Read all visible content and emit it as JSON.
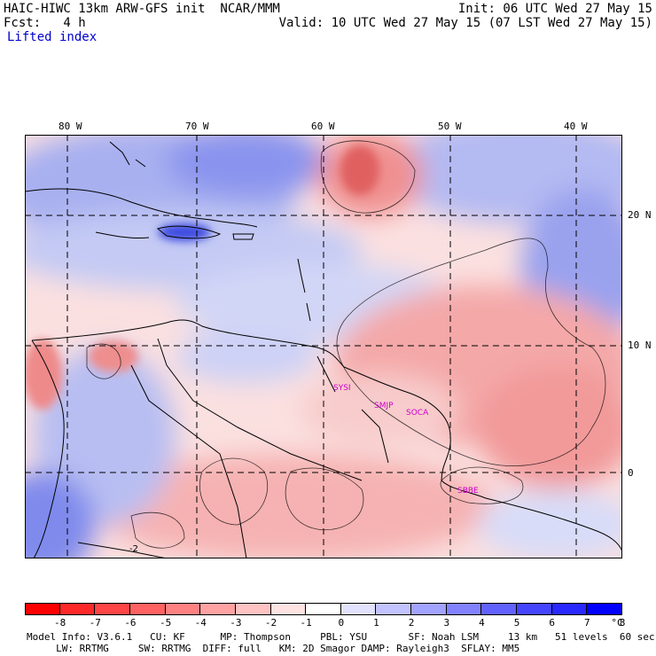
{
  "header": {
    "model_line": "HAIC-HIWC 13km ARW-GFS init  NCAR/MMM",
    "fcst_line": "Fcst:   4 h",
    "field": "Lifted index",
    "init_line": "Init: 06 UTC Wed 27 May 15",
    "valid_line": "Valid: 10 UTC Wed 27 May 15 (07 LST Wed 27 May 15)"
  },
  "lon_labels": [
    "80 W",
    "70 W",
    "60 W",
    "50 W",
    "40 W"
  ],
  "lat_labels": [
    "20 N",
    "10 N",
    "0"
  ],
  "contour_label": "-2",
  "stations": [
    "SYSI",
    "SMJP",
    "SOCA",
    "SBBE"
  ],
  "colorbar": {
    "labels": [
      "-8",
      "-7",
      "-6",
      "-5",
      "-4",
      "-3",
      "-2",
      "-1",
      "0",
      "1",
      "2",
      "3",
      "4",
      "5",
      "6",
      "7",
      "8"
    ],
    "unit": "°C",
    "colors": [
      "#ff0000",
      "#ff2828",
      "#ff4545",
      "#ff6262",
      "#ff8282",
      "#ffa2a2",
      "#ffc2c2",
      "#ffe2e2",
      "#ffffff",
      "#e2e2ff",
      "#c2c2ff",
      "#a2a2ff",
      "#8282ff",
      "#6262ff",
      "#4545ff",
      "#2828ff",
      "#0000ff"
    ]
  },
  "footer": {
    "line1": "Model Info: V3.6.1   CU: KF      MP: Thompson     PBL: YSU       SF: Noah LSM     13 km   51 levels  60 sec",
    "line2": "     LW: RRTMG     SW: RRTMG  DIFF: full   KM: 2D Smagor DAMP: Rayleigh3  SFLAY: MM5"
  }
}
